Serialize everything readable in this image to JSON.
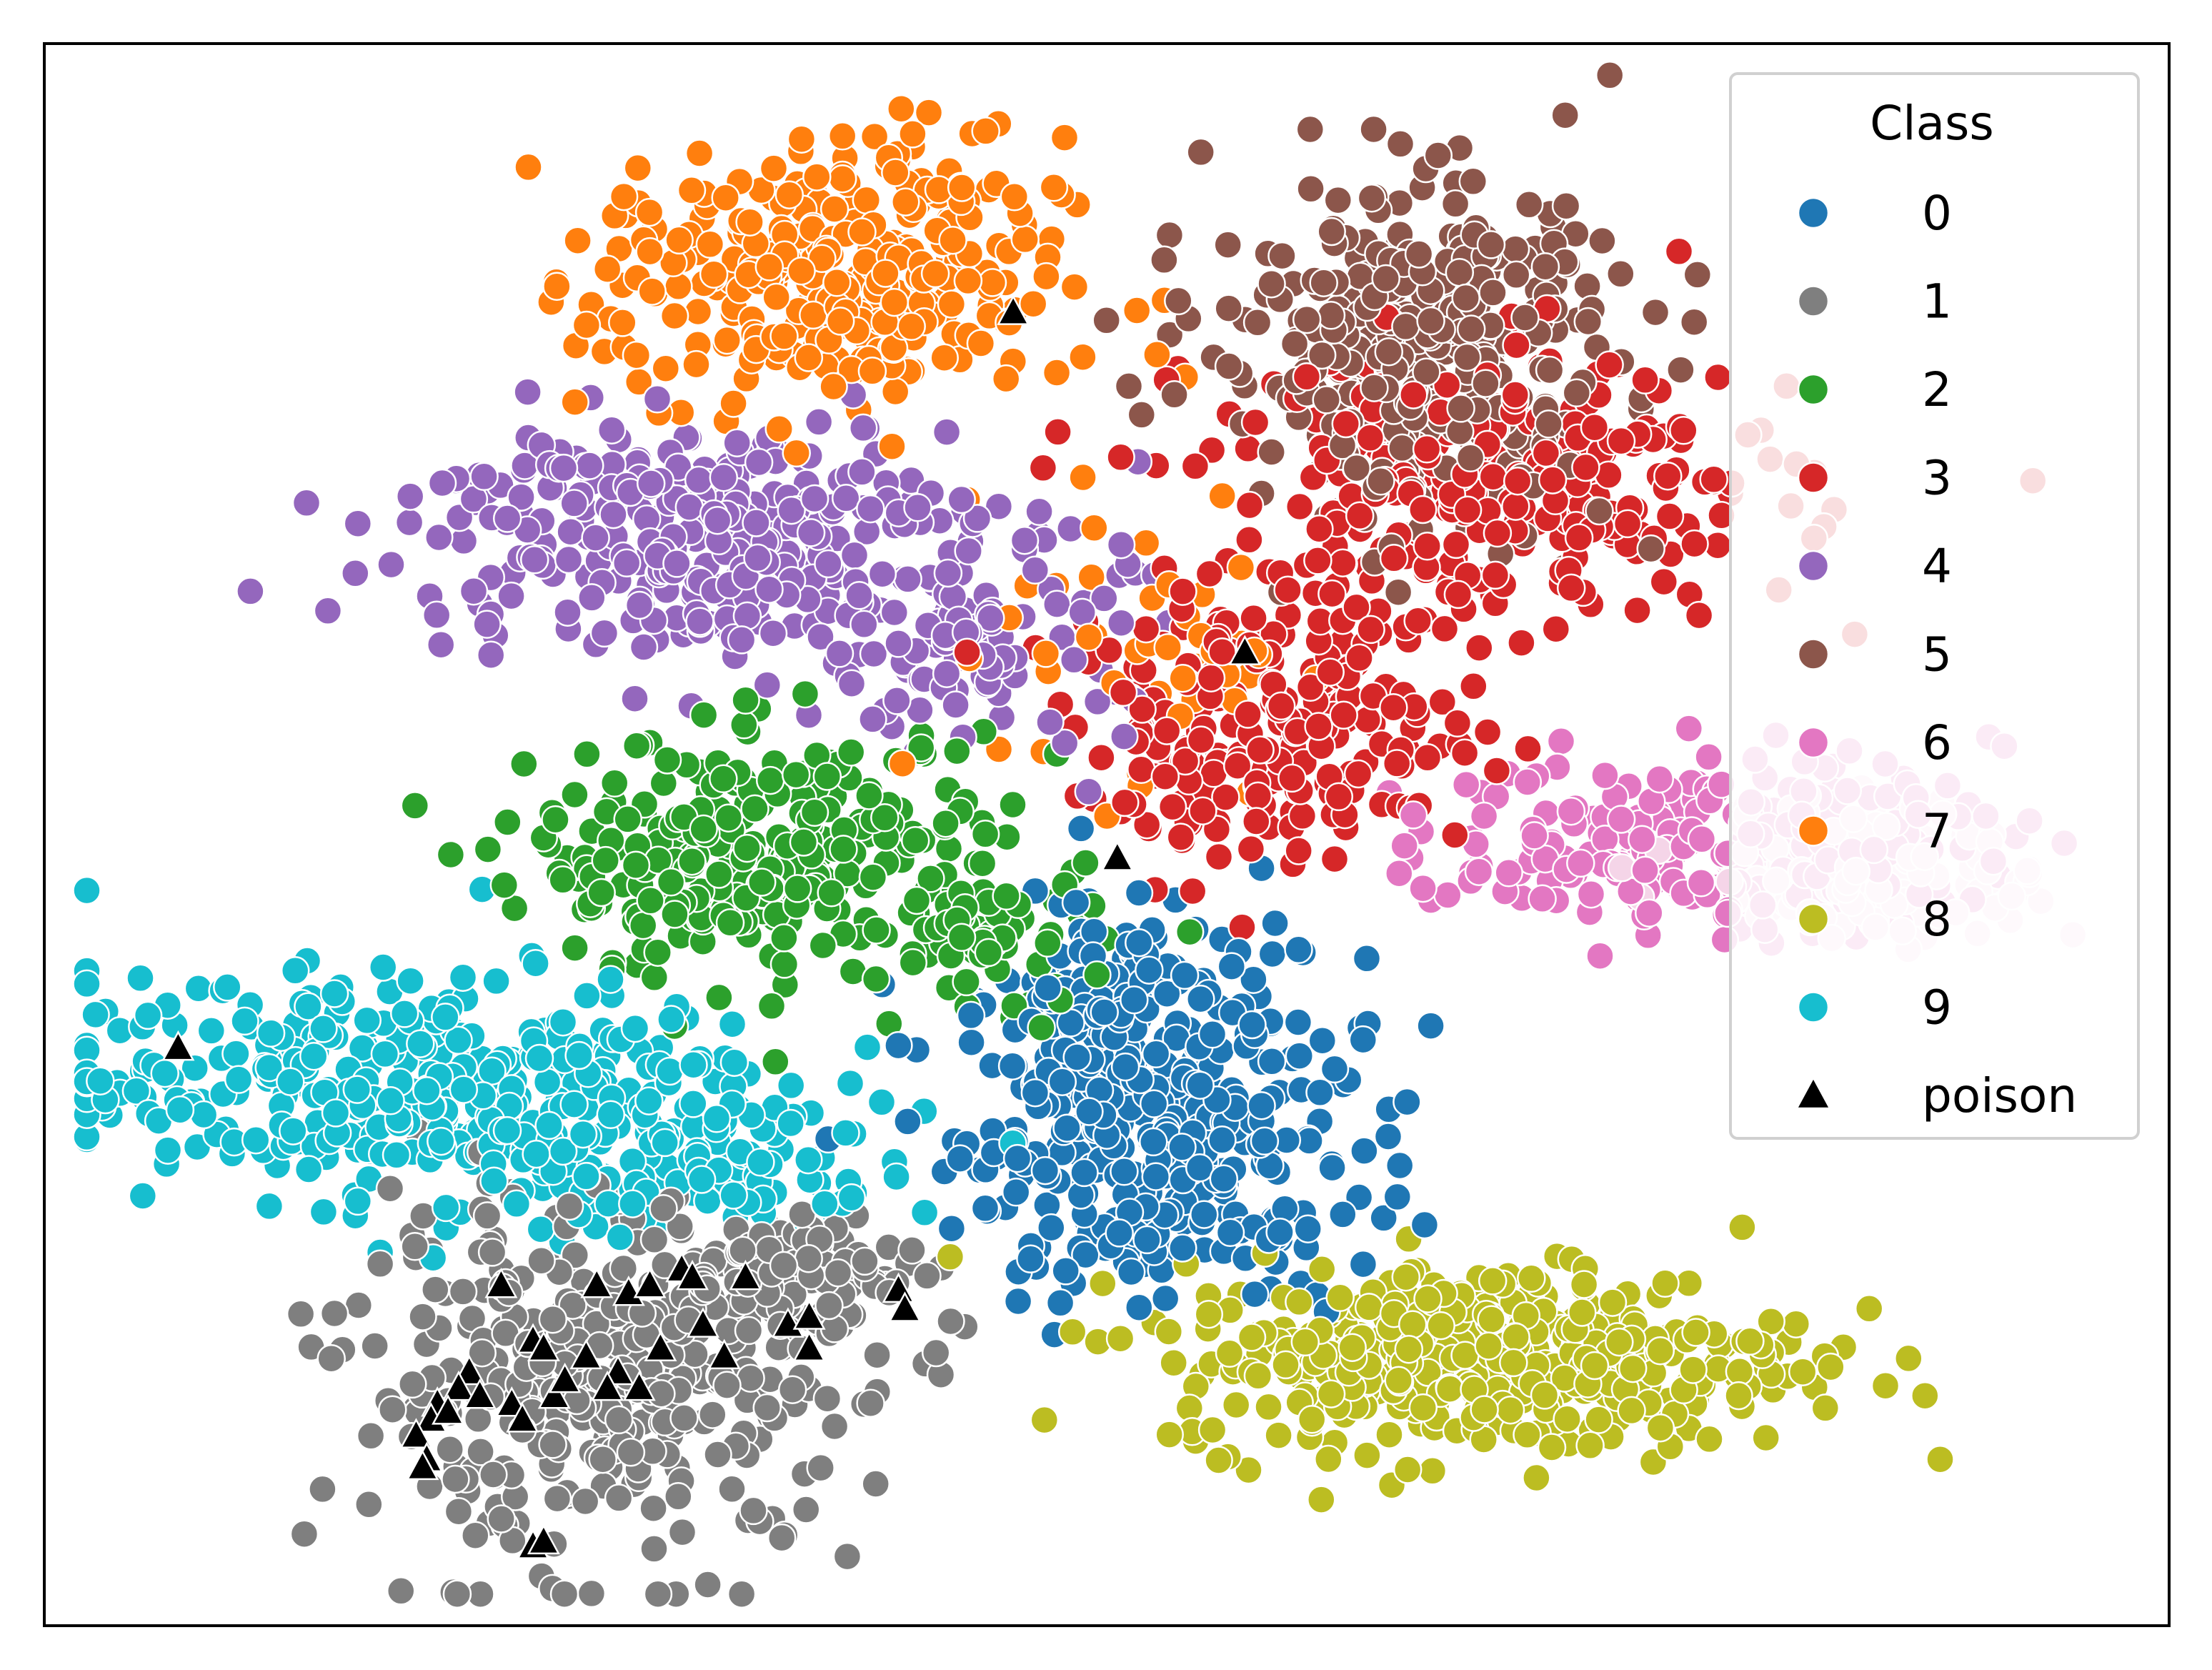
{
  "chart_data": {
    "type": "scatter",
    "title": "",
    "xlabel": "",
    "ylabel": "",
    "axis_ticks": "hidden",
    "grid": false,
    "legend": {
      "title": "Class",
      "position": "top-right",
      "entries": [
        {
          "label": "0",
          "color": "#1f77b4",
          "marker": "circle"
        },
        {
          "label": "1",
          "color": "#7f7f7f",
          "marker": "circle"
        },
        {
          "label": "2",
          "color": "#2ca02c",
          "marker": "circle"
        },
        {
          "label": "3",
          "color": "#d62728",
          "marker": "circle"
        },
        {
          "label": "4",
          "color": "#9467bd",
          "marker": "circle"
        },
        {
          "label": "5",
          "color": "#8c564b",
          "marker": "circle"
        },
        {
          "label": "6",
          "color": "#e377c2",
          "marker": "circle"
        },
        {
          "label": "7",
          "color": "#ff7f0e",
          "marker": "circle"
        },
        {
          "label": "8",
          "color": "#bcbd22",
          "marker": "circle"
        },
        {
          "label": "9",
          "color": "#17becf",
          "marker": "circle"
        },
        {
          "label": "poison",
          "color": "#000000",
          "marker": "triangle"
        }
      ]
    },
    "xlim": [
      0,
      100
    ],
    "ylim": [
      0,
      100
    ],
    "clusters": [
      {
        "class": "0",
        "color": "#1f77b4",
        "cx": 52.5,
        "cy": 31.5,
        "sx": 4.8,
        "sy": 5.5,
        "n": 380
      },
      {
        "class": "0",
        "color": "#1f77b4",
        "cx": 49.6,
        "cy": 40.0,
        "sx": 2.0,
        "sy": 3.5,
        "n": 70
      },
      {
        "class": "1",
        "color": "#7f7f7f",
        "cx": 26.5,
        "cy": 15.5,
        "sx": 6.0,
        "sy": 5.5,
        "n": 380
      },
      {
        "class": "1",
        "color": "#7f7f7f",
        "cx": 35.5,
        "cy": 22.5,
        "sx": 4.0,
        "sy": 2.0,
        "n": 90
      },
      {
        "class": "2",
        "color": "#2ca02c",
        "cx": 34.0,
        "cy": 48.5,
        "sx": 5.5,
        "sy": 3.8,
        "n": 300
      },
      {
        "class": "2",
        "color": "#2ca02c",
        "cx": 45.0,
        "cy": 43.0,
        "sx": 2.5,
        "sy": 2.5,
        "n": 60
      },
      {
        "class": "3",
        "color": "#d62728",
        "cx": 68.5,
        "cy": 72.0,
        "sx": 7.0,
        "sy": 4.5,
        "n": 300
      },
      {
        "class": "3",
        "color": "#d62728",
        "cx": 58.0,
        "cy": 56.5,
        "sx": 4.8,
        "sy": 4.2,
        "n": 220
      },
      {
        "class": "4",
        "color": "#9467bd",
        "cx": 30.0,
        "cy": 69.0,
        "sx": 6.5,
        "sy": 3.8,
        "n": 320
      },
      {
        "class": "4",
        "color": "#9467bd",
        "cx": 44.0,
        "cy": 62.5,
        "sx": 3.5,
        "sy": 3.5,
        "n": 110
      },
      {
        "class": "5",
        "color": "#8c564b",
        "cx": 64.5,
        "cy": 80.5,
        "sx": 4.8,
        "sy": 5.5,
        "n": 380
      },
      {
        "class": "6",
        "color": "#e377c2",
        "cx": 79.0,
        "cy": 49.5,
        "sx": 6.5,
        "sy": 2.8,
        "n": 260
      },
      {
        "class": "6",
        "color": "#f5d5e8",
        "cx": 86.0,
        "cy": 47.5,
        "sx": 4.0,
        "sy": 2.2,
        "n": 140
      },
      {
        "class": "7",
        "color": "#ff7f0e",
        "cx": 37.0,
        "cy": 85.0,
        "sx": 5.5,
        "sy": 4.5,
        "n": 330
      },
      {
        "class": "7",
        "color": "#ff7f0e",
        "cx": 52.0,
        "cy": 62.0,
        "sx": 3.5,
        "sy": 5.0,
        "n": 45
      },
      {
        "class": "8",
        "color": "#bcbd22",
        "cx": 68.0,
        "cy": 17.0,
        "sx": 7.5,
        "sy": 3.0,
        "n": 430
      },
      {
        "class": "9",
        "color": "#17becf",
        "cx": 17.5,
        "cy": 34.0,
        "sx": 8.5,
        "sy": 3.5,
        "n": 400
      },
      {
        "class": "9",
        "color": "#17becf",
        "cx": 30.5,
        "cy": 28.5,
        "sx": 4.5,
        "sy": 2.0,
        "n": 90
      }
    ],
    "poison_points": [
      [
        45.6,
        83.0
      ],
      [
        56.5,
        61.5
      ],
      [
        50.5,
        48.5
      ],
      [
        6.3,
        36.5
      ],
      [
        21.5,
        21.5
      ],
      [
        26.0,
        21.5
      ],
      [
        27.5,
        21.0
      ],
      [
        28.5,
        21.5
      ],
      [
        30.0,
        22.5
      ],
      [
        30.5,
        22.0
      ],
      [
        33.0,
        22.0
      ],
      [
        35.0,
        19.0
      ],
      [
        36.0,
        19.5
      ],
      [
        40.2,
        21.2
      ],
      [
        40.5,
        20.0
      ],
      [
        23.0,
        18.0
      ],
      [
        23.5,
        17.5
      ],
      [
        25.5,
        17.0
      ],
      [
        27.0,
        16.0
      ],
      [
        26.5,
        15.0
      ],
      [
        29.0,
        17.5
      ],
      [
        32.0,
        17.0
      ],
      [
        36.0,
        17.5
      ],
      [
        20.0,
        16.0
      ],
      [
        19.5,
        15.0
      ],
      [
        18.5,
        14.0
      ],
      [
        18.2,
        13.0
      ],
      [
        17.5,
        12.0
      ],
      [
        19.0,
        13.5
      ],
      [
        20.5,
        14.5
      ],
      [
        22.0,
        14.0
      ],
      [
        24.0,
        14.5
      ],
      [
        24.5,
        15.5
      ],
      [
        22.5,
        13.0
      ],
      [
        18.0,
        10.5
      ],
      [
        17.8,
        10.0
      ],
      [
        23.0,
        5.0
      ],
      [
        23.5,
        5.3
      ],
      [
        28.0,
        15.0
      ],
      [
        31.0,
        19.0
      ]
    ]
  }
}
